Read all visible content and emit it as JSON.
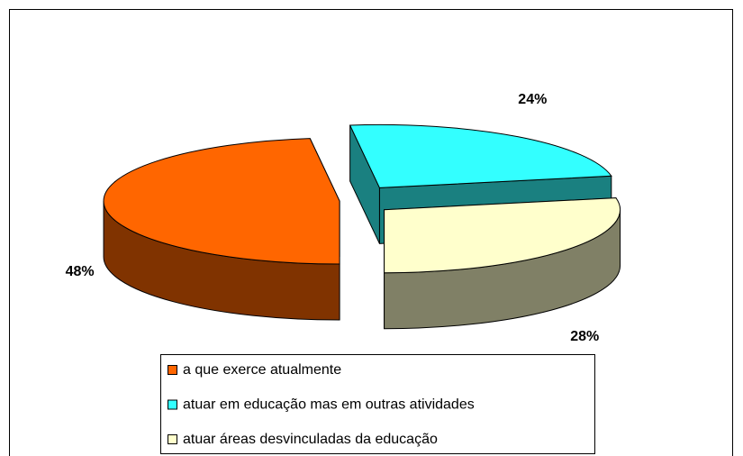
{
  "chart_data": {
    "type": "pie3d",
    "categories": [
      "a que exerce atualmente",
      "atuar em educação mas em outras atividades",
      "atuar áreas desvinculadas da educação"
    ],
    "values": [
      48,
      24,
      28
    ],
    "value_labels": [
      "48%",
      "24%",
      "28%"
    ],
    "colors": [
      "#ff6600",
      "#33ffff",
      "#ffffcc"
    ],
    "legend": "bottom"
  }
}
